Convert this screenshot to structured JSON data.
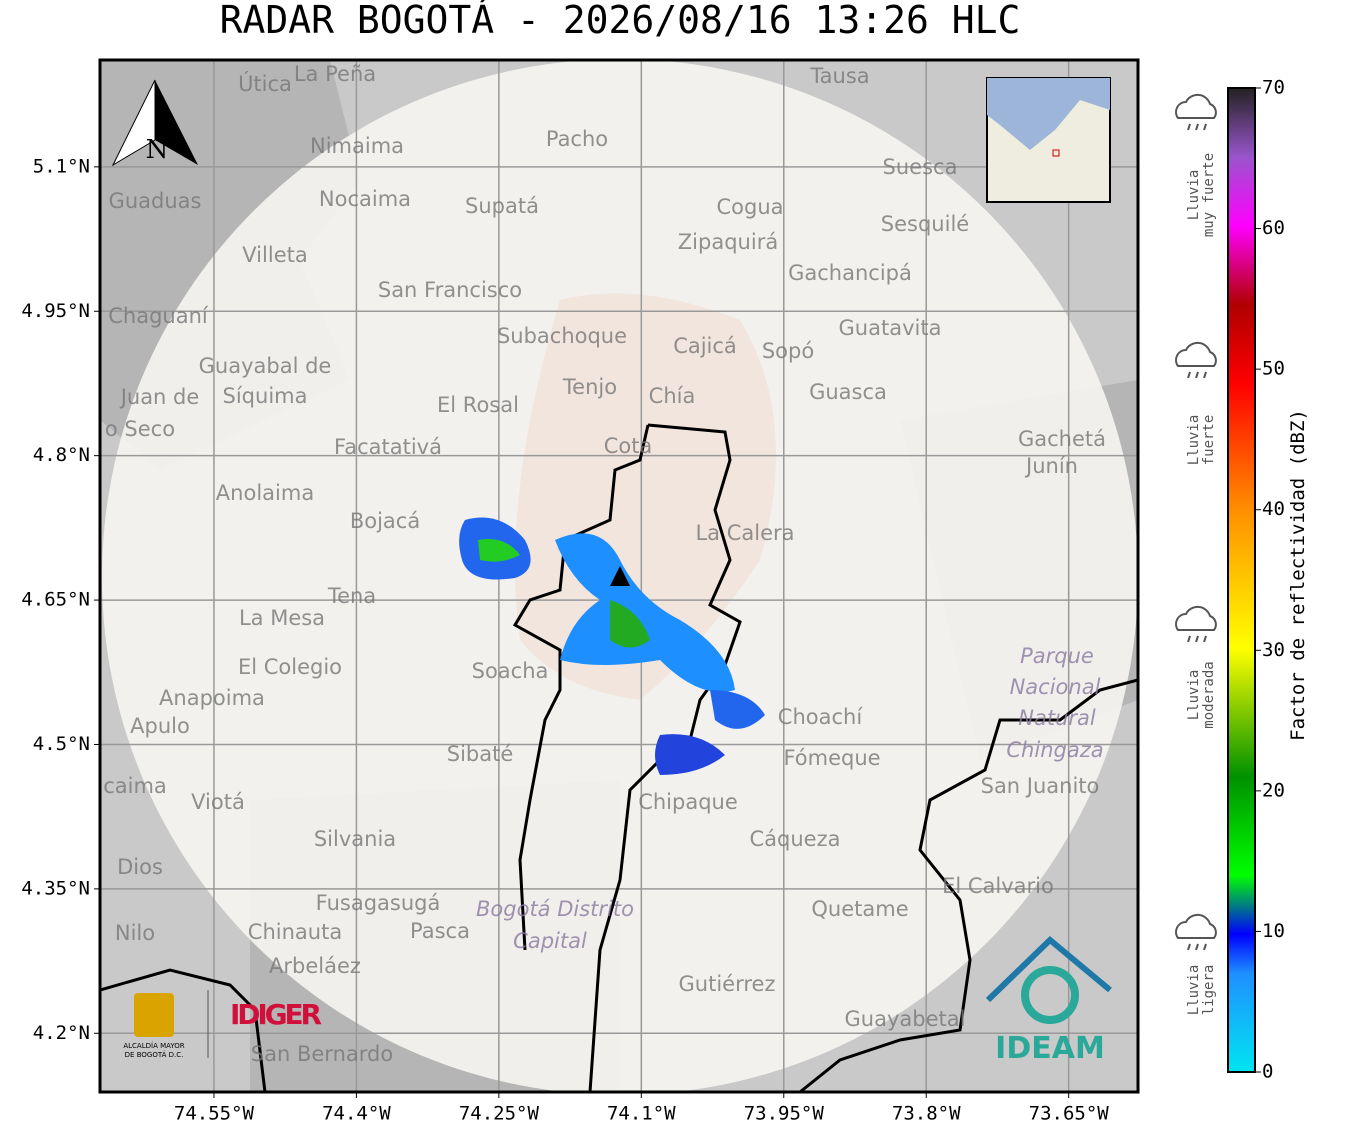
{
  "title": "RADAR BOGOTÁ - 2026/08/16 13:26 HLC",
  "map": {
    "lon_lim": [
      -74.67,
      -73.577
    ],
    "lat_lim": [
      4.139,
      5.211
    ],
    "lon_ticks": [
      {
        "value": -74.55,
        "label": "74.55°W"
      },
      {
        "value": -74.4,
        "label": "74.4°W"
      },
      {
        "value": -74.25,
        "label": "74.25°W"
      },
      {
        "value": -74.1,
        "label": "74.1°W"
      },
      {
        "value": -73.95,
        "label": "73.95°W"
      },
      {
        "value": -73.8,
        "label": "73.8°W"
      },
      {
        "value": -73.65,
        "label": "73.65°W"
      }
    ],
    "lat_ticks": [
      {
        "value": 5.1,
        "label": "5.1°N"
      },
      {
        "value": 4.95,
        "label": "4.95°N"
      },
      {
        "value": 4.8,
        "label": "4.8°N"
      },
      {
        "value": 4.65,
        "label": "4.65°N"
      },
      {
        "value": 4.5,
        "label": "4.5°N"
      },
      {
        "value": 4.35,
        "label": "4.35°N"
      },
      {
        "value": 4.2,
        "label": "4.2°N"
      }
    ],
    "places": [
      "La Peña",
      "Útica",
      "Tausa",
      "Pacho",
      "Nimaima",
      "Guaduas",
      "Nocaima",
      "Supatá",
      "Cogua",
      "Suesca",
      "Sesquilé",
      "Zipaquirá",
      "Villeta",
      "Gachancipá",
      "San Francisco",
      "Chaguaní",
      "Guatavita",
      "Subachoque",
      "Cajicá",
      "Sopó",
      "Guayabal de",
      "Síquima",
      "Tenjo",
      "Chía",
      "Guasca",
      "Juan de",
      "o Seco",
      "El Rosal",
      "Cota",
      "Gachetá",
      "Junín",
      "Facatativá",
      "Anolaima",
      "Bojacá",
      "La Calera",
      "Tena",
      "La Mesa",
      "Soacha",
      "El Colegio",
      "Anapoima",
      "Apulo",
      "Parque",
      "Nacional",
      "Natural",
      "Chingaza",
      "Choachí",
      "Sibaté",
      "Fómeque",
      "San Juanito",
      "caima",
      "Viotá",
      "Chipaque",
      "Silvania",
      "Cáqueza",
      "Dios",
      "El Calvario",
      "Fusagasugá",
      "Bogotá Distrito",
      "Capital",
      "Quetame",
      "Nilo",
      "Chinauta",
      "Pasca",
      "Arbeláez",
      "Gutiérrez",
      "Guayabetal",
      "San Bernardo"
    ],
    "north": "N"
  },
  "colorbar": {
    "label": "Factor de reflectividad (dBZ)",
    "lim": [
      0,
      70
    ],
    "ticks": [
      0,
      10,
      20,
      30,
      40,
      50,
      60,
      70
    ]
  },
  "legend": [
    [
      "Lluvia",
      "muy fuerte"
    ],
    [
      "Lluvia",
      "fuerte"
    ],
    [
      "Lluvia",
      "moderada"
    ],
    [
      "Lluvia",
      "ligera"
    ]
  ],
  "logos": {
    "alcaldia": [
      "ALCALDÍA MAYOR",
      "DE BOGOTÁ D.C."
    ],
    "idiger": "IDIGER",
    "ideam": "IDEAM"
  }
}
